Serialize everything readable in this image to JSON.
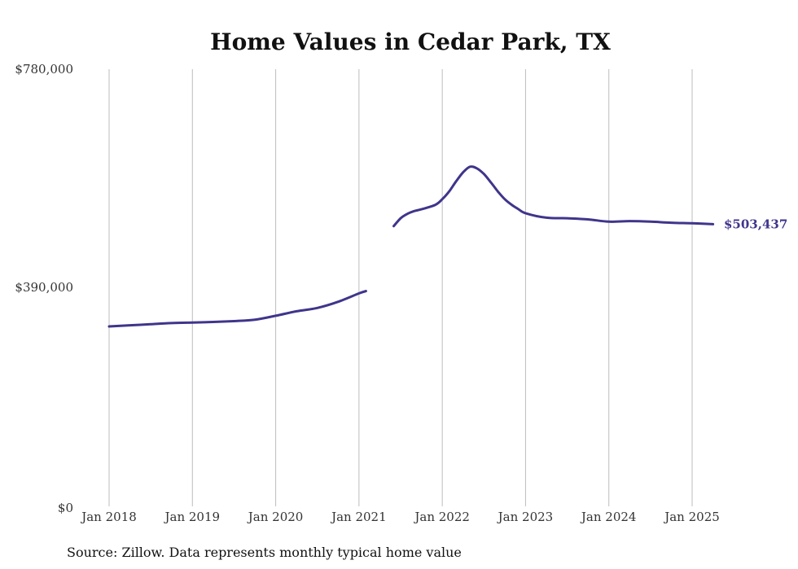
{
  "chart_data": {
    "type": "line",
    "title": "Home Values in Cedar Park, TX",
    "source": "Source: Zillow. Data represents monthly typical home value",
    "x_ticks": [
      "Jan 2018",
      "Jan 2019",
      "Jan 2020",
      "Jan 2021",
      "Jan 2022",
      "Jan 2023",
      "Jan 2024",
      "Jan 2025"
    ],
    "y_ticks": [
      "$0",
      "$390,000",
      "$780,000"
    ],
    "ylim": [
      0,
      780000
    ],
    "xlim": [
      "2018-01",
      "2025-04"
    ],
    "grid": "vertical",
    "line_color": "#3f358b",
    "end_label": "$503,437",
    "series": [
      {
        "segments": [
          [
            [
              "2018-01",
              321000
            ],
            [
              "2018-04",
              323000
            ],
            [
              "2018-07",
              325000
            ],
            [
              "2018-10",
              327000
            ],
            [
              "2019-01",
              328000
            ],
            [
              "2019-04",
              329000
            ],
            [
              "2019-07",
              330500
            ],
            [
              "2019-10",
              333000
            ],
            [
              "2020-01",
              340000
            ],
            [
              "2020-04",
              348000
            ],
            [
              "2020-07",
              354000
            ],
            [
              "2020-10",
              365000
            ],
            [
              "2021-01",
              380000
            ],
            [
              "2021-02",
              384000
            ]
          ],
          [
            [
              "2021-06",
              500000
            ],
            [
              "2021-07",
              514000
            ],
            [
              "2021-08",
              522000
            ],
            [
              "2021-09",
              527000
            ],
            [
              "2021-10",
              530000
            ],
            [
              "2021-12",
              538000
            ],
            [
              "2022-01",
              548000
            ],
            [
              "2022-02",
              562000
            ],
            [
              "2022-03",
              580000
            ],
            [
              "2022-04",
              596000
            ],
            [
              "2022-05",
              606000
            ],
            [
              "2022-06",
              603000
            ],
            [
              "2022-07",
              593000
            ],
            [
              "2022-08",
              578000
            ],
            [
              "2022-09",
              562000
            ],
            [
              "2022-10",
              548000
            ],
            [
              "2022-11",
              538000
            ],
            [
              "2022-12",
              530000
            ],
            [
              "2023-01",
              523000
            ],
            [
              "2023-04",
              515000
            ],
            [
              "2023-07",
              514000
            ],
            [
              "2023-10",
              512000
            ],
            [
              "2024-01",
              508000
            ],
            [
              "2024-04",
              509000
            ],
            [
              "2024-07",
              508000
            ],
            [
              "2024-10",
              506000
            ],
            [
              "2025-01",
              505000
            ],
            [
              "2025-04",
              503437
            ]
          ]
        ]
      }
    ]
  }
}
